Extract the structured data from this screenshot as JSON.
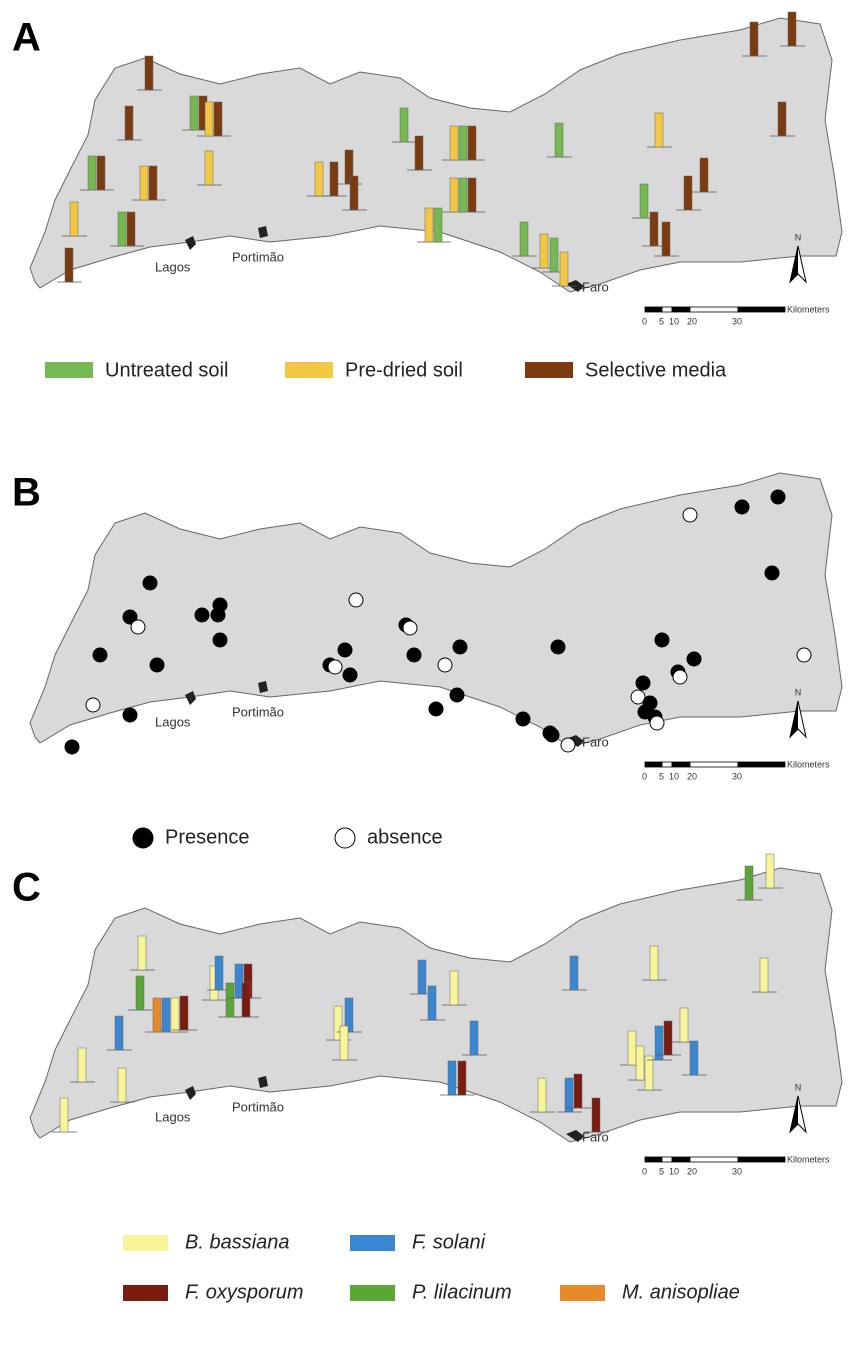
{
  "panels": [
    {
      "label": "A",
      "places": [
        "Lagos",
        "Portimão",
        "Faro"
      ],
      "scale": {
        "ticks": [
          "0",
          "5",
          "10",
          "20",
          "30"
        ],
        "unit": "Kilometers"
      },
      "north": "N",
      "legend": [
        "Untreated soil",
        "Pre-dried soil",
        "Selective media"
      ]
    },
    {
      "label": "B",
      "places": [
        "Lagos",
        "Portimão",
        "Faro"
      ],
      "scale": {
        "ticks": [
          "0",
          "5",
          "10",
          "20",
          "30"
        ],
        "unit": "Kilometers"
      },
      "north": "N",
      "legend": [
        "Presence",
        "absence"
      ]
    },
    {
      "label": "C",
      "places": [
        "Lagos",
        "Portimão",
        "Faro"
      ],
      "scale": {
        "ticks": [
          "0",
          "5",
          "10",
          "20",
          "30"
        ],
        "unit": "Kilometers"
      },
      "north": "N",
      "legend": [
        "B. bassiana",
        "F. solani",
        "F. oxysporum",
        "P. lilacinum",
        "M. anisopliae"
      ]
    }
  ]
}
